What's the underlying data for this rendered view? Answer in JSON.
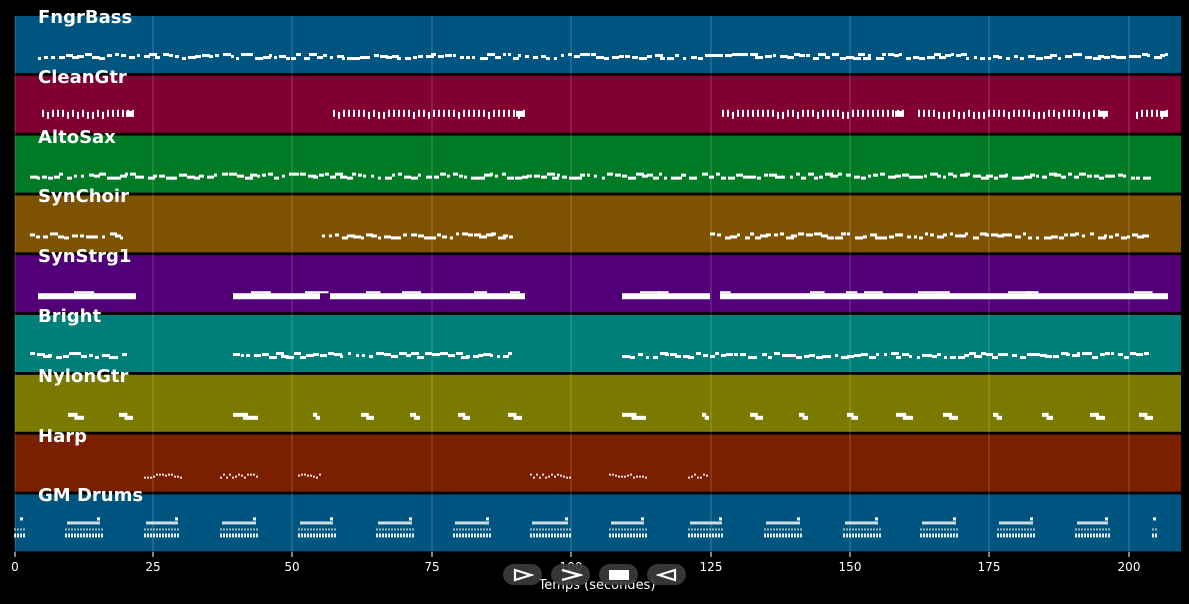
{
  "tracks": [
    {
      "name": "FngrBass",
      "color": "#005580"
    },
    {
      "name": "CleanGtr",
      "color": "#800030"
    },
    {
      "name": "AltoSax",
      "color": "#007a25"
    },
    {
      "name": "SynChoir",
      "color": "#7d5200"
    },
    {
      "name": "SynStrg1",
      "color": "#520078"
    },
    {
      "name": "Bright",
      "color": "#007e7a"
    },
    {
      "name": "NylonGtr",
      "color": "#7a7a00"
    },
    {
      "name": "Harp",
      "color": "#7a2000"
    },
    {
      "name": "GM Drums",
      "color": "#005580"
    }
  ],
  "axis": {
    "title": "Temps (secondes)",
    "ticks": [
      "0",
      "25",
      "50",
      "75",
      "100",
      "125",
      "150",
      "175",
      "200"
    ]
  },
  "controls": {
    "icons": [
      "play-outline-icon",
      "forward-icon",
      "stop-icon",
      "rewind-icon"
    ]
  }
}
